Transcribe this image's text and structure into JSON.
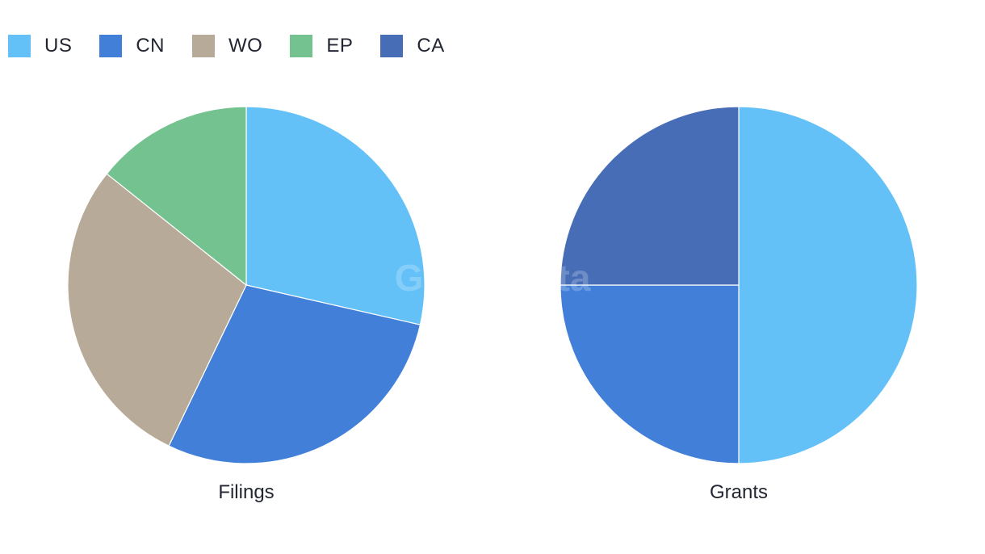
{
  "legend": [
    {
      "label": "US",
      "color": "#63c1f8"
    },
    {
      "label": "CN",
      "color": "#417fd8"
    },
    {
      "label": "WO",
      "color": "#b8aa98"
    },
    {
      "label": "EP",
      "color": "#73c28f"
    },
    {
      "label": "CA",
      "color": "#466db6"
    }
  ],
  "watermark": "GlobalData",
  "chart_data": [
    {
      "type": "pie",
      "title": "Filings",
      "labels": [
        "US",
        "CN",
        "WO",
        "EP"
      ],
      "values": [
        2,
        2,
        2,
        1
      ],
      "colors": [
        "#63c1f8",
        "#417fd8",
        "#b8aa98",
        "#73c28f"
      ]
    },
    {
      "type": "pie",
      "title": "Grants",
      "labels": [
        "US",
        "CN",
        "CA"
      ],
      "values": [
        2,
        1,
        1
      ],
      "colors": [
        "#63c1f8",
        "#417fd8",
        "#466db6"
      ]
    }
  ]
}
